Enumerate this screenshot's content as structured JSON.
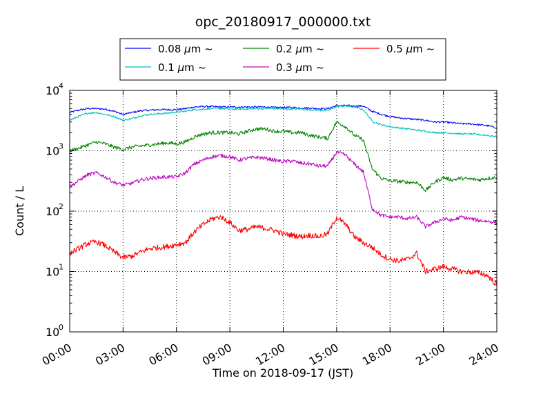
{
  "chart_data": {
    "type": "line",
    "title": "opc_20180917_000000.txt",
    "xlabel": "Time on 2018-09-17 (JST)",
    "ylabel": "Count / L",
    "xlim": [
      0,
      24
    ],
    "ylim": [
      1,
      10000
    ],
    "yscale": "log",
    "grid": true,
    "legend_position": "top-center-above-axes",
    "legend_columns": 3,
    "x_ticks": [
      0,
      3,
      6,
      9,
      12,
      15,
      18,
      21,
      24
    ],
    "x_tick_labels": [
      "00:00",
      "03:00",
      "06:00",
      "09:00",
      "12:00",
      "15:00",
      "18:00",
      "21:00",
      "24:00"
    ],
    "y_ticks": [
      1,
      10,
      100,
      1000,
      10000
    ],
    "y_tick_labels": [
      {
        "base": "10",
        "exp": "0"
      },
      {
        "base": "10",
        "exp": "1"
      },
      {
        "base": "10",
        "exp": "2"
      },
      {
        "base": "10",
        "exp": "3"
      },
      {
        "base": "10",
        "exp": "4"
      }
    ],
    "x": [
      0,
      0.5,
      1,
      1.5,
      2,
      2.5,
      3,
      3.5,
      4,
      4.5,
      5,
      5.5,
      6,
      6.5,
      7,
      7.5,
      8,
      8.5,
      9,
      9.5,
      10,
      10.5,
      11,
      11.5,
      12,
      12.5,
      13,
      13.5,
      14,
      14.5,
      15,
      15.5,
      16,
      16.5,
      17,
      17.5,
      18,
      18.5,
      19,
      19.5,
      20,
      20.5,
      21,
      21.5,
      22,
      22.5,
      23,
      23.5,
      24
    ],
    "series": [
      {
        "name_prefix": "0.08",
        "name_unit": "μm",
        "name_suffix": "~",
        "color": "#0000ff",
        "values": [
          4300,
          4700,
          5000,
          5000,
          4900,
          4500,
          4000,
          4300,
          4600,
          4700,
          4800,
          4800,
          4800,
          5000,
          5300,
          5400,
          5400,
          5300,
          5300,
          5300,
          5300,
          5300,
          5300,
          5200,
          5200,
          5200,
          5100,
          5100,
          5000,
          5000,
          5600,
          5600,
          5500,
          5500,
          4500,
          4000,
          3700,
          3500,
          3400,
          3300,
          3200,
          3000,
          3000,
          2900,
          2800,
          2800,
          2700,
          2600,
          2400
        ]
      },
      {
        "name_prefix": "0.1",
        "name_unit": "μm",
        "name_suffix": "~",
        "color": "#00bfbf",
        "values": [
          3200,
          3700,
          4200,
          4300,
          4000,
          3700,
          3200,
          3400,
          3800,
          4000,
          4100,
          4200,
          4400,
          4500,
          4800,
          4900,
          5000,
          5000,
          4900,
          4900,
          4900,
          5000,
          5000,
          5000,
          4900,
          4900,
          4900,
          4800,
          4700,
          4600,
          5400,
          5500,
          5300,
          4800,
          3100,
          2700,
          2500,
          2400,
          2300,
          2200,
          2100,
          2000,
          2000,
          1950,
          1900,
          1900,
          1850,
          1800,
          1700
        ]
      },
      {
        "name_prefix": "0.2",
        "name_unit": "μm",
        "name_suffix": "~",
        "color": "#008000",
        "values": [
          1000,
          1100,
          1250,
          1400,
          1300,
          1150,
          1050,
          1150,
          1200,
          1250,
          1300,
          1350,
          1300,
          1400,
          1700,
          1900,
          2000,
          2000,
          2000,
          1900,
          2100,
          2300,
          2300,
          2100,
          2100,
          2000,
          2000,
          1800,
          1700,
          1600,
          3000,
          2500,
          1800,
          1500,
          500,
          350,
          320,
          310,
          300,
          300,
          220,
          300,
          360,
          330,
          350,
          340,
          330,
          350,
          360
        ]
      },
      {
        "name_prefix": "0.3",
        "name_unit": "μm",
        "name_suffix": "~",
        "color": "#bf00bf",
        "values": [
          250,
          320,
          400,
          430,
          370,
          300,
          270,
          290,
          330,
          350,
          360,
          370,
          370,
          430,
          600,
          700,
          800,
          830,
          800,
          700,
          750,
          780,
          750,
          700,
          660,
          680,
          620,
          610,
          560,
          560,
          950,
          850,
          600,
          450,
          110,
          85,
          80,
          80,
          75,
          80,
          55,
          65,
          75,
          70,
          80,
          75,
          70,
          68,
          65
        ]
      },
      {
        "name_prefix": "0.5",
        "name_unit": "μm",
        "name_suffix": "~",
        "color": "#ff0000",
        "values": [
          20,
          24,
          29,
          31,
          27,
          21,
          17,
          18,
          21,
          24,
          25,
          26,
          28,
          30,
          45,
          60,
          75,
          80,
          65,
          48,
          50,
          55,
          52,
          48,
          42,
          40,
          38,
          40,
          38,
          42,
          80,
          60,
          38,
          30,
          25,
          19,
          16,
          15,
          16,
          20,
          10,
          11,
          12,
          11,
          10,
          9.8,
          9.6,
          8.5,
          6
        ]
      }
    ]
  }
}
